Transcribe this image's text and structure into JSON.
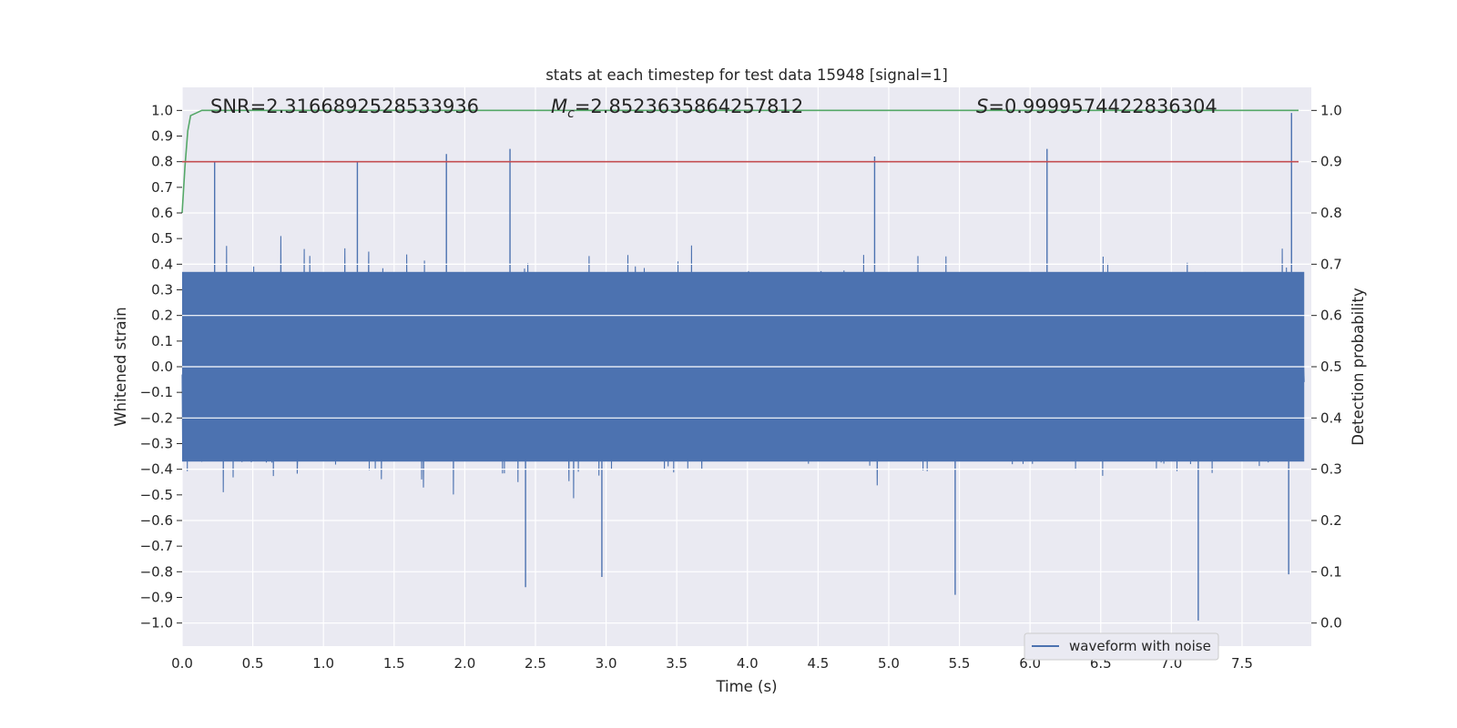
{
  "chart_data": {
    "type": "line",
    "title": "stats at each timestep for test data 15948 [signal=1]",
    "xlabel": "Time (s)",
    "ylabel": "Whitened strain",
    "y2label": "Detection probability",
    "xlim": [
      0.0,
      7.99
    ],
    "ylim": [
      -1.09,
      1.09
    ],
    "y2lim": [
      -0.045,
      1.045
    ],
    "x_ticks": [
      0.0,
      0.5,
      1.0,
      1.5,
      2.0,
      2.5,
      3.0,
      3.5,
      4.0,
      4.5,
      5.0,
      5.5,
      6.0,
      6.5,
      7.0,
      7.5
    ],
    "x_tick_labels": [
      "0.0",
      "0.5",
      "1.0",
      "1.5",
      "2.0",
      "2.5",
      "3.0",
      "3.5",
      "4.0",
      "4.5",
      "5.0",
      "5.5",
      "6.0",
      "6.5",
      "7.0",
      "7.5"
    ],
    "y_ticks": [
      1.0,
      0.9,
      0.8,
      0.7,
      0.6,
      0.5,
      0.4,
      0.3,
      0.2,
      0.1,
      0.0,
      -0.1,
      -0.2,
      -0.3,
      -0.4,
      -0.5,
      -0.6,
      -0.7,
      -0.8,
      -0.9,
      -1.0
    ],
    "y_tick_labels": [
      "1.0",
      "0.9",
      "0.8",
      "0.7",
      "0.6",
      "0.5",
      "0.4",
      "0.3",
      "0.2",
      "0.1",
      "0.0",
      "−0.1",
      "−0.2",
      "−0.3",
      "−0.4",
      "−0.5",
      "−0.6",
      "−0.7",
      "−0.8",
      "−0.9",
      "−1.0"
    ],
    "y2_ticks": [
      1.0,
      0.9,
      0.8,
      0.7,
      0.6,
      0.5,
      0.4,
      0.3,
      0.2,
      0.1,
      0.0
    ],
    "y2_tick_labels": [
      "1.0",
      "0.9",
      "0.8",
      "0.7",
      "0.6",
      "0.5",
      "0.4",
      "0.3",
      "0.2",
      "0.1",
      "0.0"
    ],
    "grid": true,
    "legend_position": "bottom-right",
    "annotations": {
      "snr": "SNR=2.3166892528533936",
      "mc_symbol": "M",
      "mc_subscript": "c",
      "mc_value": "=2.8523635864257812",
      "s_symbol": "S",
      "s_value": "=0.9999574422836304"
    },
    "series": [
      {
        "name": "waveform with noise",
        "axis": "left",
        "color": "#4c72b0",
        "kind": "noisy-strain",
        "sample_peaks": [
          {
            "x": 0.23,
            "y": 0.8
          },
          {
            "x": 1.24,
            "y": 0.8
          },
          {
            "x": 1.87,
            "y": 0.83
          },
          {
            "x": 2.32,
            "y": 0.85
          },
          {
            "x": 4.9,
            "y": 0.82
          },
          {
            "x": 6.12,
            "y": 0.85
          },
          {
            "x": 7.85,
            "y": 0.99
          },
          {
            "x": 2.43,
            "y": -0.86
          },
          {
            "x": 2.97,
            "y": -0.82
          },
          {
            "x": 5.47,
            "y": -0.89
          },
          {
            "x": 7.19,
            "y": -0.99
          },
          {
            "x": 7.83,
            "y": -0.81
          }
        ]
      },
      {
        "axis": "right",
        "color": "#55a868",
        "kind": "probability",
        "x": [
          0.0,
          0.02,
          0.04,
          0.06,
          0.1,
          0.14,
          7.9
        ],
        "y": [
          0.8,
          0.89,
          0.96,
          0.99,
          0.995,
          1.0,
          1.0
        ]
      },
      {
        "axis": "right",
        "color": "#c44e52",
        "kind": "threshold",
        "x": [
          0.0,
          7.9
        ],
        "y": [
          0.9,
          0.9
        ]
      }
    ]
  },
  "colors": {
    "plot_background": "#eaeaf2",
    "grid": "#ffffff",
    "text": "#262626"
  }
}
